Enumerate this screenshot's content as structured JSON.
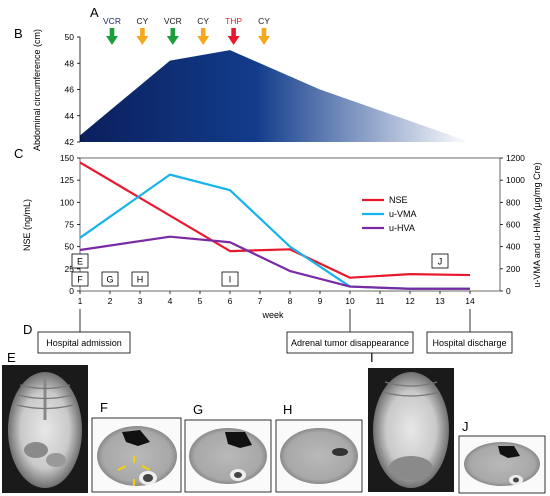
{
  "panel_labels": [
    "A",
    "B",
    "C",
    "D",
    "E",
    "F",
    "G",
    "H",
    "I",
    "J"
  ],
  "drugs": [
    {
      "label": "VCR",
      "week": 2,
      "color": "#1a9f3b",
      "text_color": "#1f2a6b"
    },
    {
      "label": "CY",
      "week": 3,
      "color": "#f5a81c",
      "text_color": "#1a1a1a"
    },
    {
      "label": "VCR",
      "week": 4,
      "color": "#1a9f3b",
      "text_color": "#1a1a1a"
    },
    {
      "label": "CY",
      "week": 5,
      "color": "#f5a81c",
      "text_color": "#1a1a1a"
    },
    {
      "label": "THP",
      "week": 6,
      "color": "#e8192c",
      "text_color": "#e8192c"
    },
    {
      "label": "CY",
      "week": 7,
      "color": "#f5a81c",
      "text_color": "#1a1a1a"
    }
  ],
  "chart_data": [
    {
      "type": "area",
      "panel": "B",
      "ylabel": "Abdominal circumference (cm)",
      "ylim": [
        42,
        50
      ],
      "yticks": [
        42,
        44,
        46,
        48,
        50
      ],
      "x": [
        1,
        4,
        6,
        9,
        14
      ],
      "values": [
        42.5,
        48.2,
        49,
        46,
        42
      ],
      "colors": {
        "start": "#0b1f5c",
        "mid": "#123c8c",
        "end": "#ffffff"
      }
    },
    {
      "type": "line",
      "panel": "C",
      "xlabel": "week",
      "categories": [
        1,
        2,
        3,
        4,
        5,
        6,
        7,
        8,
        9,
        10,
        11,
        12,
        13,
        14
      ],
      "left_axis": {
        "label": "NSE (ng/mL)",
        "ylim": [
          0,
          150
        ],
        "ticks": [
          0,
          25,
          50,
          75,
          100,
          125,
          150
        ]
      },
      "right_axis": {
        "label": "u-VMA and u-HMA (μg/mg Cre)",
        "ylim": [
          0,
          1200
        ],
        "ticks": [
          0,
          200,
          400,
          600,
          800,
          1000,
          1200
        ]
      },
      "legend_position": "right",
      "series": [
        {
          "name": "NSE",
          "axis": "left",
          "color": "#e8192c",
          "x": [
            1,
            6,
            8,
            10,
            12,
            14
          ],
          "y": [
            145,
            45,
            47,
            15,
            19,
            18
          ]
        },
        {
          "name": "u-VMA",
          "axis": "right",
          "color": "#16b4ea",
          "x": [
            1,
            4,
            6,
            8,
            10,
            12,
            14
          ],
          "y": [
            480,
            1050,
            910,
            400,
            40,
            20,
            20
          ]
        },
        {
          "name": "u-HVA",
          "axis": "right",
          "color": "#7a2aa3",
          "x": [
            1,
            4,
            6,
            8,
            10,
            12,
            14
          ],
          "y": [
            370,
            490,
            440,
            180,
            40,
            20,
            20
          ]
        }
      ],
      "boxes": [
        {
          "label": "E",
          "week": 1,
          "row": 0
        },
        {
          "label": "F",
          "week": 1,
          "row": 1
        },
        {
          "label": "G",
          "week": 2,
          "row": 1
        },
        {
          "label": "H",
          "week": 3,
          "row": 1
        },
        {
          "label": "I",
          "week": 6,
          "row": 1
        },
        {
          "label": "J",
          "week": 13,
          "row": 0
        }
      ]
    }
  ],
  "events": [
    {
      "label": "Hospital admission",
      "week": 1
    },
    {
      "label": "Adrenal tumor disappearance",
      "week": 10
    },
    {
      "label": "Hospital discharge",
      "week": 14
    }
  ]
}
